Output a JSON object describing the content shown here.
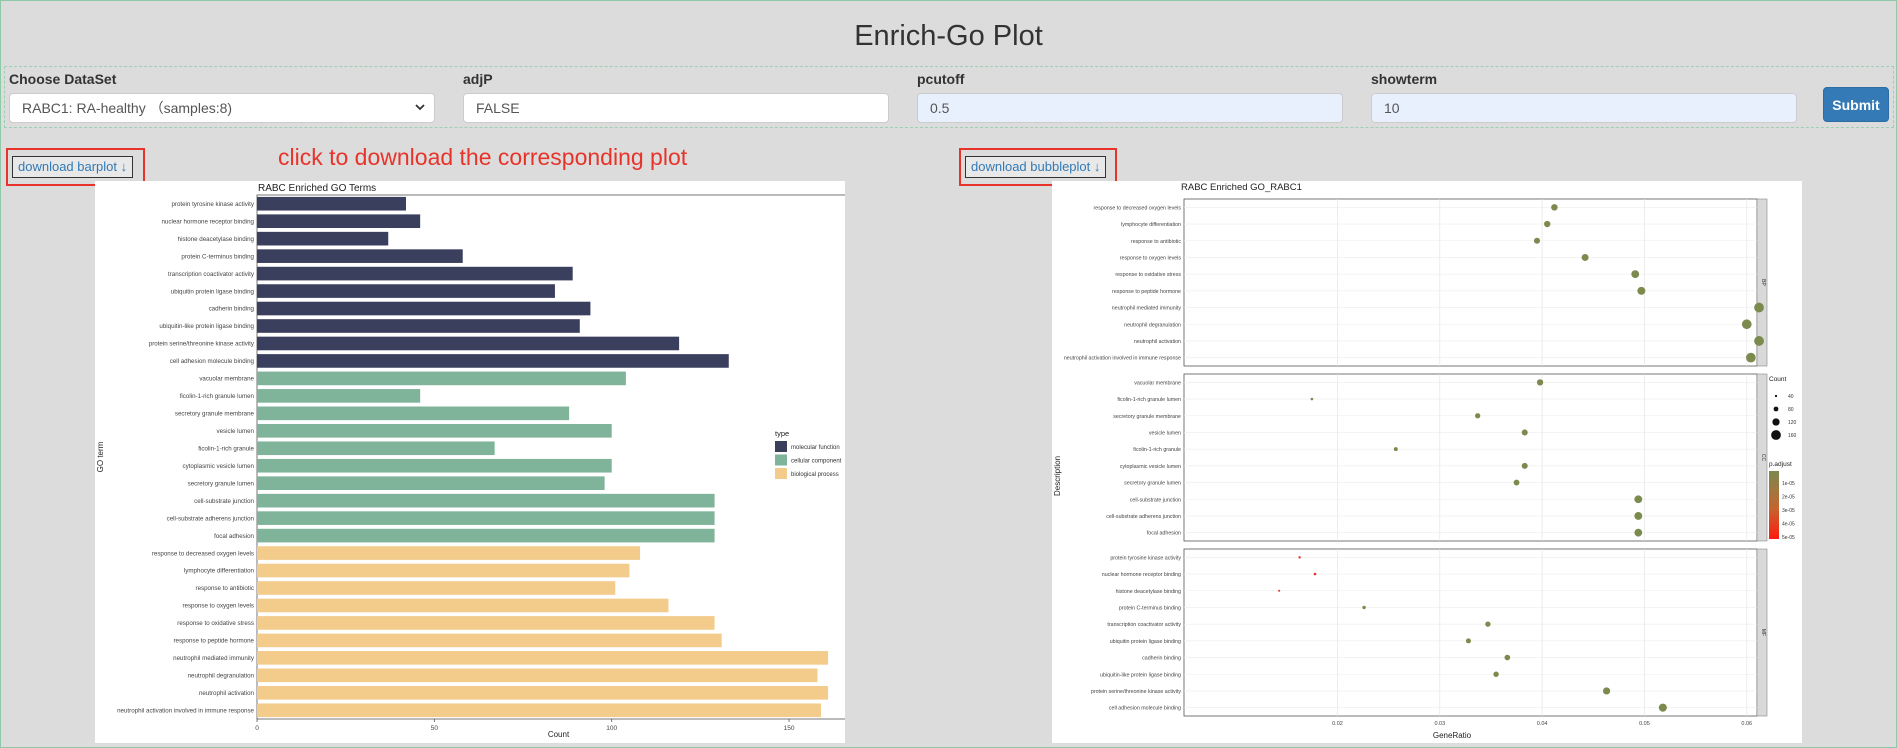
{
  "page": {
    "title": "Enrich-Go Plot"
  },
  "controls": {
    "dataset": {
      "label": "Choose DataSet",
      "value": "RABC1: RA-healthy （samples:8)"
    },
    "adjp": {
      "label": "adjP",
      "value": "FALSE"
    },
    "pcutoff": {
      "label": "pcutoff",
      "value": "0.5"
    },
    "showterm": {
      "label": "showterm",
      "value": "10"
    },
    "submit_label": "Submit"
  },
  "downloads": {
    "barplot_label": "download barplot",
    "bubbleplot_label": "download bubbleplot",
    "annotation": "click to download the corresponding plot"
  },
  "colors": {
    "molecular_function": "#3b3f5e",
    "cellular_component": "#7fb49a",
    "biological_process": "#f3cb8b",
    "accent_red": "#e8332b",
    "button_blue": "#337ab7"
  },
  "chart_data": [
    {
      "type": "bar",
      "title": "RABC Enriched GO Terms",
      "xlabel": "Count",
      "ylabel": "GO term",
      "xlim": [
        0,
        170
      ],
      "xticks": [
        0,
        50,
        100,
        150
      ],
      "legend": {
        "title": "type",
        "position": "right",
        "entries": [
          "molecular function",
          "cellular component",
          "biological process"
        ]
      },
      "bars": [
        {
          "label": "protein tyrosine kinase activity",
          "value": 42,
          "type": "molecular function"
        },
        {
          "label": "nuclear hormone receptor binding",
          "value": 46,
          "type": "molecular function"
        },
        {
          "label": "histone deacetylase binding",
          "value": 37,
          "type": "molecular function"
        },
        {
          "label": "protein C-terminus binding",
          "value": 58,
          "type": "molecular function"
        },
        {
          "label": "transcription coactivator activity",
          "value": 89,
          "type": "molecular function"
        },
        {
          "label": "ubiquitin protein ligase binding",
          "value": 84,
          "type": "molecular function"
        },
        {
          "label": "cadherin binding",
          "value": 94,
          "type": "molecular function"
        },
        {
          "label": "ubiquitin-like protein ligase binding",
          "value": 91,
          "type": "molecular function"
        },
        {
          "label": "protein serine/threonine kinase activity",
          "value": 119,
          "type": "molecular function"
        },
        {
          "label": "cell adhesion molecule binding",
          "value": 133,
          "type": "molecular function"
        },
        {
          "label": "vacuolar membrane",
          "value": 104,
          "type": "cellular component"
        },
        {
          "label": "ficolin-1-rich granule lumen",
          "value": 46,
          "type": "cellular component"
        },
        {
          "label": "secretory granule membrane",
          "value": 88,
          "type": "cellular component"
        },
        {
          "label": "vesicle lumen",
          "value": 100,
          "type": "cellular component"
        },
        {
          "label": "ficolin-1-rich granule",
          "value": 67,
          "type": "cellular component"
        },
        {
          "label": "cytoplasmic vesicle lumen",
          "value": 100,
          "type": "cellular component"
        },
        {
          "label": "secretory granule lumen",
          "value": 98,
          "type": "cellular component"
        },
        {
          "label": "cell-substrate junction",
          "value": 129,
          "type": "cellular component"
        },
        {
          "label": "cell-substrate adherens junction",
          "value": 129,
          "type": "cellular component"
        },
        {
          "label": "focal adhesion",
          "value": 129,
          "type": "cellular component"
        },
        {
          "label": "response to decreased oxygen levels",
          "value": 108,
          "type": "biological process"
        },
        {
          "label": "lymphocyte differentiation",
          "value": 105,
          "type": "biological process"
        },
        {
          "label": "response to antibiotic",
          "value": 101,
          "type": "biological process"
        },
        {
          "label": "response to oxygen levels",
          "value": 116,
          "type": "biological process"
        },
        {
          "label": "response to oxidative stress",
          "value": 129,
          "type": "biological process"
        },
        {
          "label": "response to peptide hormone",
          "value": 131,
          "type": "biological process"
        },
        {
          "label": "neutrophil mediated immunity",
          "value": 161,
          "type": "biological process"
        },
        {
          "label": "neutrophil degranulation",
          "value": 158,
          "type": "biological process"
        },
        {
          "label": "neutrophil activation",
          "value": 161,
          "type": "biological process"
        },
        {
          "label": "neutrophil activation involved in immune response",
          "value": 159,
          "type": "biological process"
        }
      ]
    },
    {
      "type": "scatter",
      "title": "RABC Enriched GO_RABC1",
      "xlabel": "GeneRatio",
      "ylabel": "Description",
      "xlim": [
        0.005,
        0.061
      ],
      "xticks": [
        0.02,
        0.03,
        0.04,
        0.05,
        0.06
      ],
      "xtick_labels": [
        "0.02",
        "0.03",
        "0.04",
        "0.05",
        "0.06"
      ],
      "legend": {
        "size_title": "Count",
        "size_values": [
          40,
          80,
          120,
          160
        ],
        "color_title": "p.adjust",
        "color_labels": [
          "1e-05",
          "2e-05",
          "3e-05",
          "4e-05",
          "5e-05"
        ]
      },
      "panels": [
        {
          "strip": "BP",
          "points": [
            {
              "label": "response to decreased oxygen levels",
              "x": 0.0412,
              "count": 108,
              "color": "#7c8a4e"
            },
            {
              "label": "lymphocyte differentiation",
              "x": 0.0405,
              "count": 105,
              "color": "#7c8a4e"
            },
            {
              "label": "response to antibiotic",
              "x": 0.0395,
              "count": 101,
              "color": "#7c8a4e"
            },
            {
              "label": "response to oxygen levels",
              "x": 0.0442,
              "count": 116,
              "color": "#7c8a4e"
            },
            {
              "label": "response to oxidative stress",
              "x": 0.0491,
              "count": 129,
              "color": "#7c8a4e"
            },
            {
              "label": "response to peptide hormone",
              "x": 0.0497,
              "count": 131,
              "color": "#7c8a4e"
            },
            {
              "label": "neutrophil mediated immunity",
              "x": 0.0612,
              "count": 161,
              "color": "#7c8a4e"
            },
            {
              "label": "neutrophil degranulation",
              "x": 0.06,
              "count": 158,
              "color": "#7c8a4e"
            },
            {
              "label": "neutrophil activation",
              "x": 0.0612,
              "count": 161,
              "color": "#7c8a4e"
            },
            {
              "label": "neutrophil activation involved in immune response",
              "x": 0.0604,
              "count": 159,
              "color": "#7c8a4e"
            }
          ]
        },
        {
          "strip": "CC",
          "points": [
            {
              "label": "vacuolar membrane",
              "x": 0.0398,
              "count": 104,
              "color": "#7c8a4e"
            },
            {
              "label": "ficolin-1-rich granule lumen",
              "x": 0.0175,
              "count": 46,
              "color": "#7c8a4e"
            },
            {
              "label": "secretory granule membrane",
              "x": 0.0337,
              "count": 88,
              "color": "#7c8a4e"
            },
            {
              "label": "vesicle lumen",
              "x": 0.0383,
              "count": 100,
              "color": "#7c8a4e"
            },
            {
              "label": "ficolin-1-rich granule",
              "x": 0.0257,
              "count": 67,
              "color": "#7c8a4e"
            },
            {
              "label": "cytoplasmic vesicle lumen",
              "x": 0.0383,
              "count": 100,
              "color": "#7c8a4e"
            },
            {
              "label": "secretory granule lumen",
              "x": 0.0375,
              "count": 98,
              "color": "#7c8a4e"
            },
            {
              "label": "cell-substrate junction",
              "x": 0.0494,
              "count": 129,
              "color": "#7c8a4e"
            },
            {
              "label": "cell-substrate adherens junction",
              "x": 0.0494,
              "count": 129,
              "color": "#7c8a4e"
            },
            {
              "label": "focal adhesion",
              "x": 0.0494,
              "count": 129,
              "color": "#7c8a4e"
            }
          ]
        },
        {
          "strip": "MF",
          "points": [
            {
              "label": "protein tyrosine kinase activity",
              "x": 0.0163,
              "count": 42,
              "color": "#e8332b"
            },
            {
              "label": "nuclear hormone receptor binding",
              "x": 0.0178,
              "count": 46,
              "color": "#e8332b"
            },
            {
              "label": "histone deacetylase binding",
              "x": 0.0143,
              "count": 37,
              "color": "#e8332b"
            },
            {
              "label": "protein C-terminus binding",
              "x": 0.0226,
              "count": 58,
              "color": "#7c8a4e"
            },
            {
              "label": "transcription coactivator activity",
              "x": 0.0347,
              "count": 89,
              "color": "#7c8a4e"
            },
            {
              "label": "ubiquitin protein ligase binding",
              "x": 0.0328,
              "count": 84,
              "color": "#7c8a4e"
            },
            {
              "label": "cadherin binding",
              "x": 0.0366,
              "count": 94,
              "color": "#7c8a4e"
            },
            {
              "label": "ubiquitin-like protein ligase binding",
              "x": 0.0355,
              "count": 91,
              "color": "#7c8a4e"
            },
            {
              "label": "protein serine/threonine kinase activity",
              "x": 0.0463,
              "count": 119,
              "color": "#7c8a4e"
            },
            {
              "label": "cell adhesion molecule binding",
              "x": 0.0518,
              "count": 133,
              "color": "#7c8a4e"
            }
          ]
        }
      ]
    }
  ]
}
